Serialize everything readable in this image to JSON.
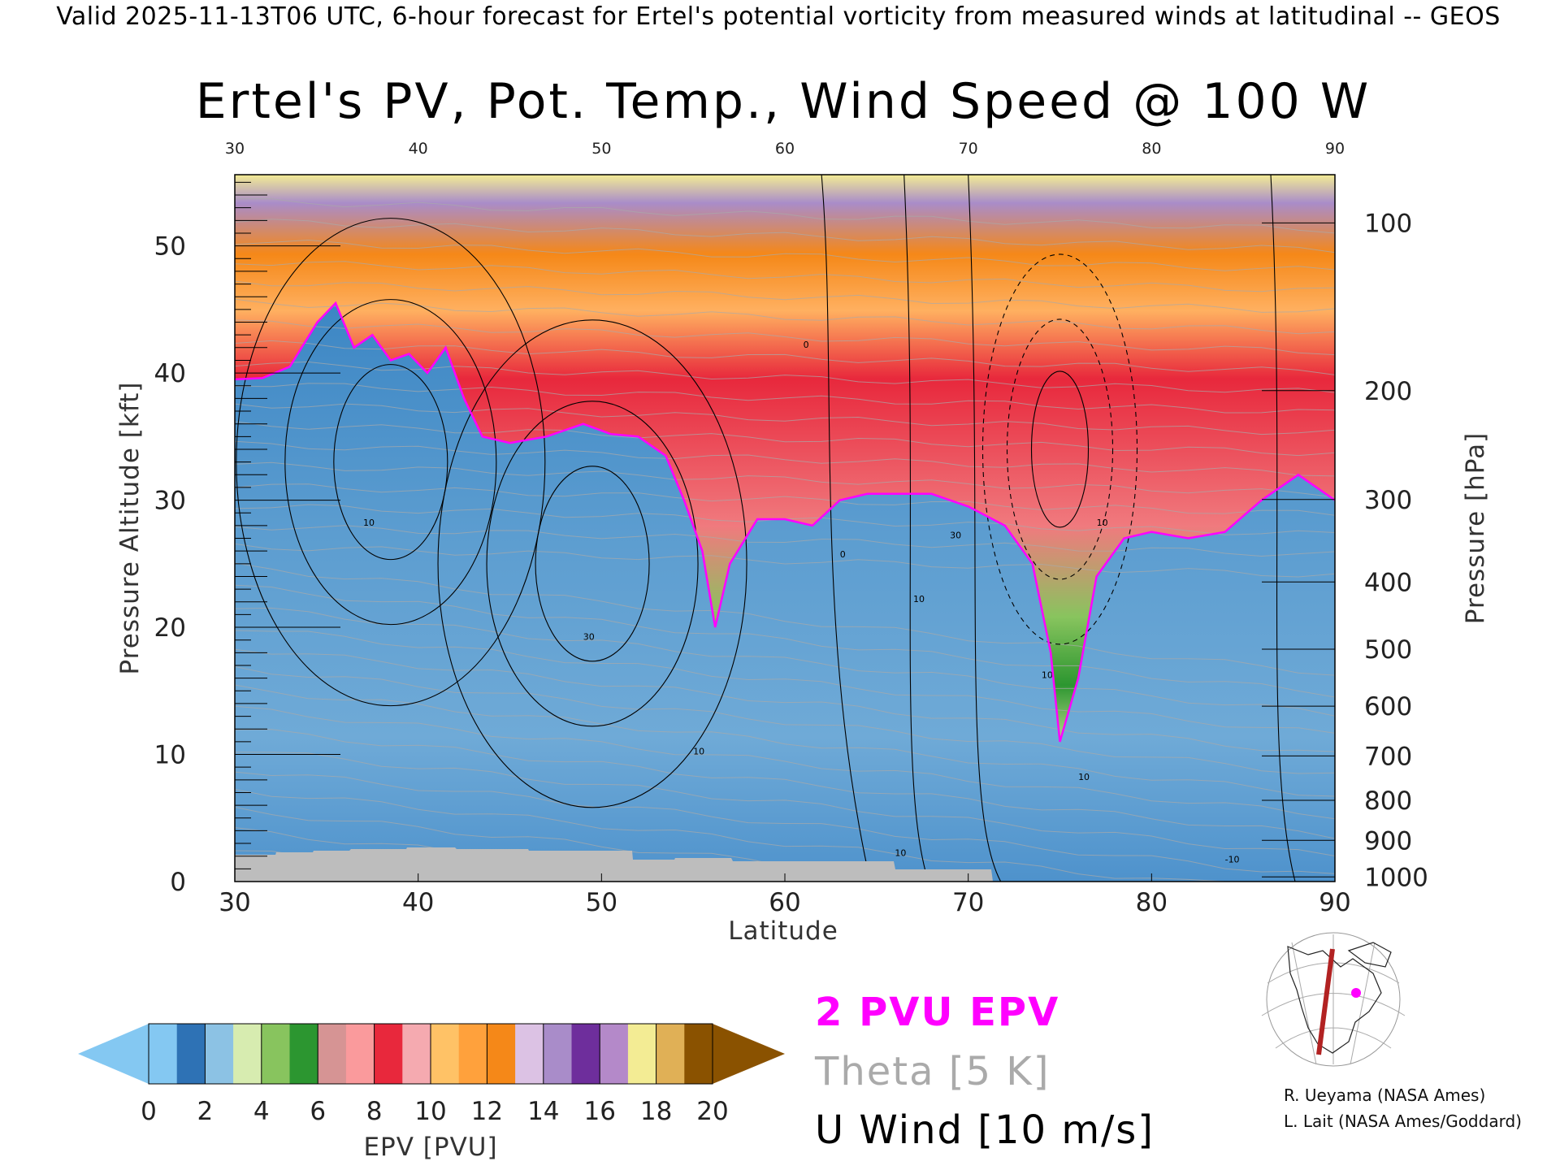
{
  "header": {
    "banner": "Valid 2025-11-13T06 UTC, 6-hour forecast for Ertel's potential vorticity from measured winds at latitudinal -- GEOS"
  },
  "chart_data": {
    "type": "heatmap",
    "title": "Ertel's PV, Pot. Temp., Wind Speed @ 100 W",
    "xlabel": "Latitude",
    "ylabel_left": "Pressure Altitude [kft]",
    "ylabel_right": "Pressure [hPa]",
    "xlim": [
      30,
      90
    ],
    "ylim_kft": [
      0,
      55.6
    ],
    "x_ticks": [
      "30",
      "40",
      "50",
      "60",
      "70",
      "80",
      "90"
    ],
    "y_ticks_kft": [
      "0",
      "10",
      "20",
      "30",
      "40",
      "50"
    ],
    "pressure_ticks": [
      {
        "hpa": 100,
        "label": "100"
      },
      {
        "hpa": 200,
        "label": "200"
      },
      {
        "hpa": 300,
        "label": "300"
      },
      {
        "hpa": 400,
        "label": "400"
      },
      {
        "hpa": 500,
        "label": "500"
      },
      {
        "hpa": 600,
        "label": "600"
      },
      {
        "hpa": 700,
        "label": "700"
      },
      {
        "hpa": 800,
        "label": "800"
      },
      {
        "hpa": 900,
        "label": "900"
      },
      {
        "hpa": 1000,
        "label": "1000"
      }
    ],
    "tropopause_2pvu_kft": [
      [
        30,
        39.5
      ],
      [
        31.5,
        39.6
      ],
      [
        33,
        40.5
      ],
      [
        34.5,
        44
      ],
      [
        35.5,
        45.5
      ],
      [
        36.5,
        42
      ],
      [
        37.5,
        43
      ],
      [
        38.5,
        41
      ],
      [
        39.5,
        41.5
      ],
      [
        40.5,
        40
      ],
      [
        41.5,
        42
      ],
      [
        42.5,
        38
      ],
      [
        43.5,
        35
      ],
      [
        45,
        34.5
      ],
      [
        47,
        35
      ],
      [
        49,
        36
      ],
      [
        50.5,
        35.2
      ],
      [
        52,
        35
      ],
      [
        53.5,
        33.5
      ],
      [
        54.5,
        30
      ],
      [
        55.5,
        26
      ],
      [
        56.2,
        20
      ],
      [
        57,
        25
      ],
      [
        58.5,
        28.5
      ],
      [
        60,
        28.5
      ],
      [
        61.5,
        28
      ],
      [
        63,
        30
      ],
      [
        64.5,
        30.5
      ],
      [
        66,
        30.5
      ],
      [
        68,
        30.5
      ],
      [
        70,
        29.5
      ],
      [
        72,
        28
      ],
      [
        73.5,
        25
      ],
      [
        74.5,
        18
      ],
      [
        75,
        11
      ],
      [
        76,
        16
      ],
      [
        77,
        24
      ],
      [
        78.5,
        27
      ],
      [
        80,
        27.5
      ],
      [
        82,
        27
      ],
      [
        84,
        27.5
      ],
      [
        86,
        30
      ],
      [
        88,
        32
      ],
      [
        90,
        30
      ]
    ],
    "u_wind_maxima_ms": [
      {
        "lat": 38.5,
        "kft": 33,
        "u": 30
      },
      {
        "lat": 49.5,
        "kft": 25,
        "u": 30
      },
      {
        "lat": 75,
        "kft": 34,
        "u": 10
      }
    ],
    "contour_labels": [
      "10",
      "30",
      "0",
      "10",
      "30",
      "10",
      "10",
      "10",
      "0",
      "10",
      "10",
      "-10"
    ],
    "colorbar": {
      "label": "EPV [PVU]",
      "ticks": [
        "0",
        "2",
        "4",
        "6",
        "8",
        "10",
        "12",
        "14",
        "16",
        "18",
        "20"
      ],
      "colors": [
        "#84c8f2",
        "#2e72b5",
        "#8cc2e4",
        "#d7ecb0",
        "#88c45e",
        "#2c9630",
        "#d69494",
        "#fa9a9c",
        "#e8283c",
        "#f5aab0",
        "#ffc266",
        "#ffa13c",
        "#f58818",
        "#dcc2e4",
        "#a98cc9",
        "#6e2e9c",
        "#b489c9",
        "#f3ec94",
        "#e0b056",
        "#8a5200"
      ]
    },
    "legend_lines": [
      {
        "text": "2 PVU EPV",
        "color": "#ff00ff"
      },
      {
        "text": "Theta [5 K]",
        "color": "#aaaaaa"
      },
      {
        "text": "U Wind [10 m/s]",
        "color": "#000000"
      }
    ]
  },
  "map_inset": {
    "section_color": "#b22222",
    "marker_color": "#ff00ff"
  },
  "credits": {
    "line1": "R. Ueyama (NASA Ames)",
    "line2": "L. Lait (NASA Ames/Goddard)"
  }
}
